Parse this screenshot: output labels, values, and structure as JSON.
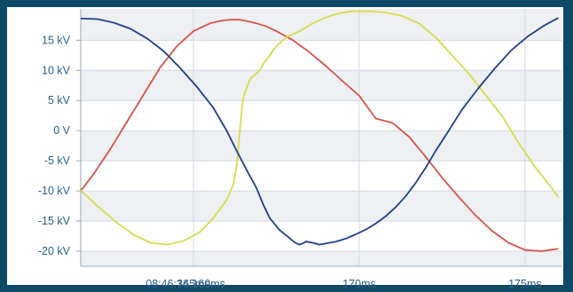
{
  "chart_data": {
    "type": "line",
    "title": "",
    "xlabel": "",
    "ylabel": "",
    "x_unit": "ms",
    "xlim": [
      161.6,
      176.1
    ],
    "ylim": [
      -22.5,
      20.2
    ],
    "grid": true,
    "legend": "none",
    "y_ticks": [
      {
        "value": 15,
        "label": "15 kV"
      },
      {
        "value": 10,
        "label": "10 kV"
      },
      {
        "value": 5,
        "label": "5 kV"
      },
      {
        "value": 0,
        "label": "0 V"
      },
      {
        "value": -5,
        "label": "-5 kV"
      },
      {
        "value": -10,
        "label": "-10 kV"
      },
      {
        "value": -15,
        "label": "-15 kV"
      },
      {
        "value": -20,
        "label": "-20 kV"
      }
    ],
    "x_ticks": [
      {
        "value": 160.16,
        "label": "08:46:34.160ms"
      },
      {
        "value": 165,
        "label": "165ms"
      },
      {
        "value": 170,
        "label": "170ms"
      },
      {
        "value": 175,
        "label": "175ms"
      }
    ],
    "series": [
      {
        "color": "#d9534a",
        "x": [
          161.6,
          162.0,
          162.5,
          163.0,
          163.5,
          164.0,
          164.5,
          165.0,
          165.5,
          165.8,
          166.1,
          166.4,
          166.6,
          166.9,
          167.2,
          167.5,
          168.0,
          168.5,
          169.0,
          169.5,
          170.0,
          170.5,
          171.0,
          171.5,
          172.0,
          172.5,
          173.0,
          173.5,
          174.0,
          174.5,
          175.0,
          175.5,
          176.0
        ],
        "y": [
          -10.0,
          -7.1,
          -3.0,
          1.5,
          6.0,
          10.5,
          14.0,
          16.5,
          17.8,
          18.2,
          18.4,
          18.4,
          18.2,
          17.8,
          17.3,
          16.5,
          15.0,
          13.0,
          10.7,
          8.2,
          5.8,
          2.0,
          1.3,
          -1.0,
          -4.3,
          -7.8,
          -11.0,
          -14.0,
          -16.6,
          -18.6,
          -19.8,
          -20.0,
          -19.6
        ]
      },
      {
        "color": "#d8dc4a",
        "x": [
          161.6,
          162.1,
          162.7,
          163.2,
          163.7,
          164.2,
          164.7,
          165.2,
          165.6,
          166.0,
          166.2,
          166.3,
          166.35,
          166.4,
          166.45,
          166.5,
          166.6,
          166.7,
          166.8,
          166.9,
          167.0,
          167.1,
          167.3,
          167.5,
          167.8,
          168.2,
          168.6,
          169.0,
          169.4,
          169.8,
          170.3,
          170.8,
          171.3,
          171.8,
          172.3,
          172.8,
          173.3,
          173.8,
          174.3,
          174.8,
          175.3,
          175.8,
          176.0
        ],
        "y": [
          -9.9,
          -12.5,
          -15.3,
          -17.3,
          -18.6,
          -18.9,
          -18.3,
          -16.8,
          -14.5,
          -11.5,
          -9.0,
          -6.0,
          -3.0,
          0.0,
          3.0,
          5.5,
          7.0,
          8.5,
          9.0,
          9.5,
          10.0,
          11.0,
          12.5,
          14.0,
          15.5,
          16.5,
          17.8,
          18.8,
          19.5,
          19.8,
          19.8,
          19.6,
          19.0,
          17.8,
          15.5,
          12.5,
          9.5,
          6.0,
          2.5,
          -2.0,
          -6.0,
          -9.5,
          -11.0
        ]
      },
      {
        "color": "#1f3f8a",
        "x": [
          161.6,
          162.1,
          162.6,
          163.1,
          163.6,
          164.1,
          164.6,
          165.1,
          165.6,
          166.0,
          166.3,
          166.6,
          166.9,
          167.1,
          167.3,
          167.6,
          167.85,
          168.0,
          168.1,
          168.2,
          168.3,
          168.4,
          168.5,
          168.6,
          168.8,
          169.0,
          169.3,
          169.6,
          169.9,
          170.2,
          170.5,
          170.8,
          171.1,
          171.4,
          171.7,
          172.0,
          172.3,
          172.7,
          173.1,
          173.6,
          174.1,
          174.6,
          175.1,
          175.6,
          176.0
        ],
        "y": [
          18.6,
          18.5,
          17.9,
          16.9,
          15.3,
          13.2,
          10.4,
          7.3,
          3.8,
          0.0,
          -3.3,
          -6.5,
          -9.5,
          -12.2,
          -14.5,
          -16.5,
          -17.6,
          -18.3,
          -18.7,
          -18.9,
          -18.7,
          -18.4,
          -18.5,
          -18.6,
          -18.9,
          -18.7,
          -18.4,
          -17.9,
          -17.2,
          -16.4,
          -15.4,
          -14.2,
          -12.7,
          -10.9,
          -8.7,
          -6.2,
          -3.4,
          0.0,
          3.5,
          7.1,
          10.4,
          13.4,
          15.7,
          17.5,
          18.7
        ]
      }
    ]
  }
}
